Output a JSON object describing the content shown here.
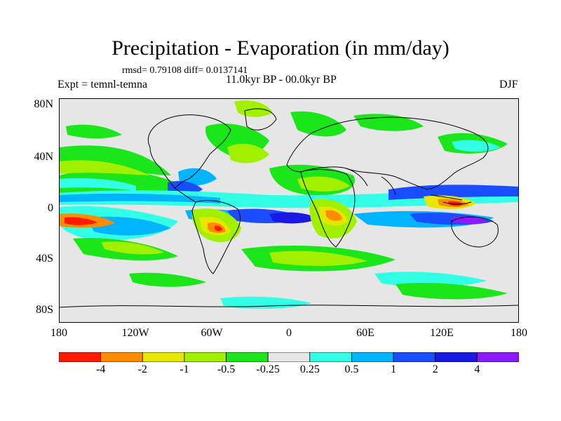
{
  "title": "Precipitation - Evaporation (in mm/day)",
  "stats": "rmsd= 0.79108 diff= 0.0137141",
  "period": "11.0kyr BP - 00.0kyr BP",
  "experiment": "Expt = temnl-temna",
  "season": "DJF",
  "y_axis_labels": [
    "80N",
    "40N",
    "0",
    "40S",
    "80S"
  ],
  "x_axis_labels": [
    "180",
    "120W",
    "60W",
    "0",
    "60E",
    "120E",
    "180"
  ],
  "colorbar": {
    "labels": [
      "-4",
      "-2",
      "-1",
      "-0.5",
      "-0.25",
      "0.25",
      "0.5",
      "1",
      "2",
      "4"
    ],
    "colors": [
      "#ff1a00",
      "#ff8c00",
      "#e6e600",
      "#a0f000",
      "#1ae61a",
      "#e6e6e6",
      "#33ffe6",
      "#00b4ff",
      "#1a4dff",
      "#1a1ae6",
      "#8c1aff"
    ]
  },
  "map": {
    "projection": "cylindrical equidistant",
    "lon_range": [
      -180,
      180
    ],
    "lat_range": [
      -90,
      90
    ],
    "background_color": "#e6e6e6",
    "coastline_color": "#000000"
  }
}
